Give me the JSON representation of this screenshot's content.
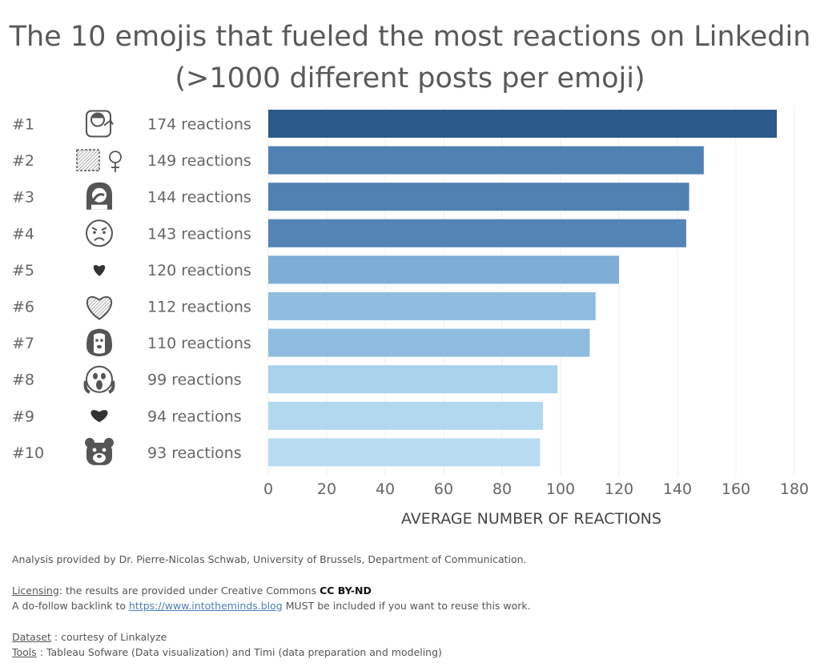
{
  "title_line1": "The 10 emojis that fueled the most reactions on Linkedin",
  "title_line2": "(>1000 different posts per emoji)",
  "chart_data": {
    "type": "bar",
    "orientation": "horizontal",
    "categories": [
      "#1",
      "#2",
      "#3",
      "#4",
      "#5",
      "#6",
      "#7",
      "#8",
      "#9",
      "#10"
    ],
    "emoji_icons": [
      "woman-tipping-hand-icon",
      "female-sign-icon",
      "woman-facepalming-icon",
      "angry-face-icon",
      "heart-suit-icon",
      "heart-outline-icon",
      "dog-face-icon",
      "face-screaming-icon",
      "black-heart-icon",
      "bear-face-icon"
    ],
    "values": [
      174,
      149,
      144,
      143,
      120,
      112,
      110,
      99,
      94,
      93
    ],
    "value_labels": [
      "174 reactions",
      "149 reactions",
      "144 reactions",
      "143 reactions",
      "120 reactions",
      "112 reactions",
      "110 reactions",
      "99 reactions",
      "94 reactions",
      "93 reactions"
    ],
    "bar_colors": [
      "#2c5a8a",
      "#4f81b3",
      "#4f81b3",
      "#5484b5",
      "#7eadd6",
      "#8fbddf",
      "#8fbddf",
      "#a9d2ec",
      "#b1d8ef",
      "#b8dcf1"
    ],
    "xlabel": "AVERAGE NUMBER OF REACTIONS",
    "xlim": [
      0,
      180
    ],
    "xticks": [
      0,
      20,
      40,
      60,
      80,
      100,
      120,
      140,
      160,
      180
    ],
    "grid": "vertical"
  },
  "footer": {
    "analysis": "Analysis provided by Dr. Pierre-Nicolas Schwab, University of Brussels, Department of Communication.",
    "licensing_label": "Licensing",
    "licensing_text": ": the results are provided under Creative Commons ",
    "license": "CC BY-ND",
    "backlink_pre": "A do-follow backlink to ",
    "backlink_url": "https://www.intotheminds.blog",
    "backlink_post": " MUST be included if you want to reuse this work.",
    "dataset_label": "Dataset",
    "dataset_text": " : courtesy of Linkalyze",
    "tools_label": "Tools",
    "tools_text": " : Tableau Sofware (Data visualization) and Timi (data preparation and modeling)"
  }
}
